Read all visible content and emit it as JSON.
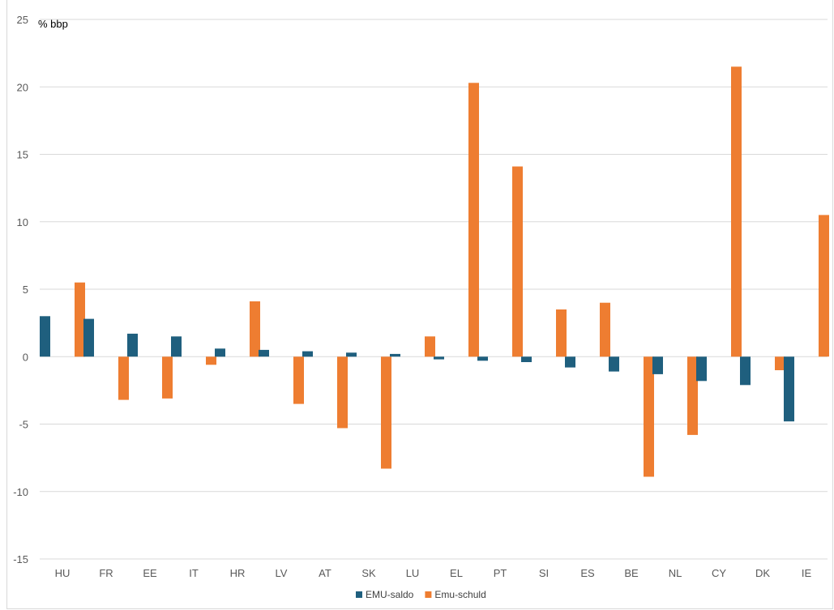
{
  "chart_data": {
    "type": "bar",
    "title": "",
    "ylabel": "% bbp",
    "xlabel": "",
    "ylim": [
      -15,
      25
    ],
    "yticks": [
      25,
      20,
      15,
      10,
      5,
      0,
      -5,
      -10,
      -15
    ],
    "grid": true,
    "legend_position": "bottom",
    "categories": [
      "HU",
      "FR",
      "EE",
      "IT",
      "HR",
      "LV",
      "AT",
      "SK",
      "LU",
      "EL",
      "PT",
      "SI",
      "ES",
      "BE",
      "NL",
      "CY",
      "DK",
      "IE"
    ],
    "series": [
      {
        "name": "EMU-saldo",
        "color": "#1f5f7e",
        "values": [
          3.0,
          2.8,
          1.7,
          1.5,
          0.6,
          0.5,
          0.4,
          0.3,
          0.2,
          -0.2,
          -0.3,
          -0.4,
          -0.8,
          -1.1,
          -1.3,
          -1.8,
          -2.1,
          -4.8
        ]
      },
      {
        "name": "Emu-schuld",
        "color": "#ee7d31",
        "values": [
          5.5,
          -3.2,
          -3.1,
          -0.6,
          4.1,
          -3.5,
          -5.3,
          -8.3,
          1.5,
          20.3,
          14.1,
          3.5,
          4.0,
          -8.9,
          -5.8,
          21.5,
          -1.0,
          10.5
        ]
      }
    ]
  }
}
